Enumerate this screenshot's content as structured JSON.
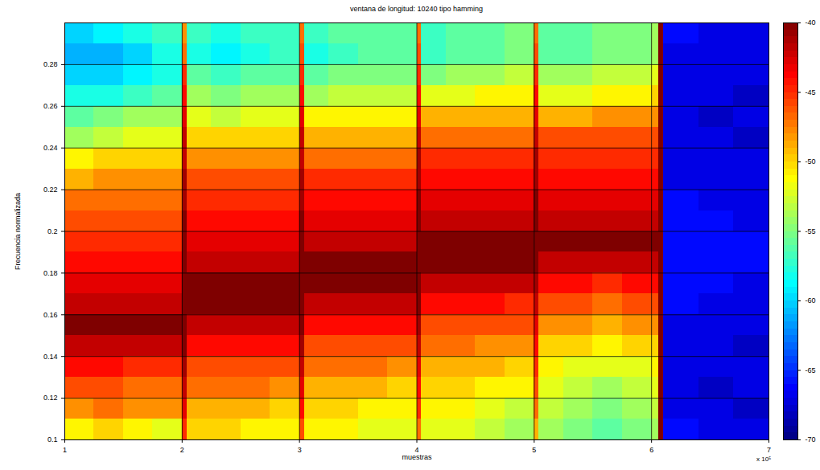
{
  "chart_data": {
    "type": "heatmap",
    "title": "ventana de longitud: 10240 tipo hamming",
    "x_label": "muestras",
    "y_label": "Frecuencia normalizada",
    "x_multiplier_label": "x 10⁵",
    "xlim": [
      1,
      7
    ],
    "xticks": [
      1,
      2,
      3,
      4,
      5,
      6,
      7
    ],
    "ylim": [
      0.1,
      0.3
    ],
    "yticks": [
      0.1,
      0.12,
      0.14,
      0.16,
      0.18,
      0.2,
      0.22,
      0.24,
      0.26,
      0.28
    ],
    "grid": true,
    "cells": {
      "x_edges": [
        1,
        1.25,
        1.5,
        1.75,
        2,
        2.04,
        2.25,
        2.5,
        2.75,
        3,
        3.04,
        3.25,
        3.5,
        3.75,
        4,
        4.04,
        4.25,
        4.5,
        4.75,
        5,
        5.04,
        5.25,
        5.5,
        5.75,
        6,
        6.06,
        6.1,
        6.4,
        6.7,
        7
      ],
      "y_edges": [
        0.1,
        0.11,
        0.12,
        0.13,
        0.14,
        0.15,
        0.16,
        0.17,
        0.18,
        0.19,
        0.2,
        0.21,
        0.22,
        0.23,
        0.24,
        0.25,
        0.26,
        0.27,
        0.28,
        0.29,
        0.3
      ],
      "values": [
        [
          -51,
          -48,
          -46,
          -44,
          -42,
          -38,
          -42,
          -43,
          -44,
          -45,
          -46,
          -47,
          -49,
          -51,
          -54,
          -56,
          -58,
          -60,
          -61,
          -60
        ],
        [
          -50,
          -47,
          -46,
          -44,
          -42,
          -38,
          -42,
          -43,
          -44,
          -45,
          -46,
          -47,
          -48,
          -50,
          -53,
          -55,
          -58,
          -60,
          -61,
          -59
        ],
        [
          -51,
          -48,
          -47,
          -45,
          -42,
          -38,
          -42,
          -43,
          -44,
          -45,
          -46,
          -47,
          -48,
          -50,
          -52,
          -54,
          -57,
          -59,
          -60,
          -58
        ],
        [
          -52,
          -48,
          -47,
          -45,
          -42,
          -38,
          -42,
          -43,
          -44,
          -45,
          -46,
          -47,
          -48,
          -50,
          -52,
          -54,
          -56,
          -58,
          -58,
          -57
        ],
        [
          -45,
          -43,
          -42,
          -41,
          -40,
          -39,
          -39,
          -39,
          -40,
          -40,
          -40,
          -41,
          -41,
          -42,
          -42,
          -43,
          -44,
          -45,
          -47,
          -48
        ],
        [
          -50,
          -49,
          -47,
          -46,
          -44,
          -42,
          -38,
          -38,
          -42,
          -43,
          -44,
          -45,
          -46,
          -48,
          -50,
          -52,
          -54,
          -56,
          -58,
          -57
        ],
        [
          -50,
          -49,
          -47,
          -46,
          -44,
          -42,
          -38,
          -38,
          -42,
          -43,
          -44,
          -45,
          -46,
          -48,
          -50,
          -53,
          -55,
          -57,
          -59,
          -58
        ],
        [
          -51,
          -49,
          -47,
          -46,
          -44,
          -42,
          -38,
          -38,
          -42,
          -43,
          -44,
          -45,
          -46,
          -48,
          -50,
          -52,
          -54,
          -56,
          -58,
          -57
        ],
        [
          -51,
          -50,
          -48,
          -46,
          -44,
          -42,
          -38,
          -38,
          -42,
          -43,
          -44,
          -45,
          -46,
          -48,
          -50,
          -52,
          -54,
          -56,
          -57,
          -57
        ],
        [
          -46,
          -44,
          -43,
          -42,
          -41,
          -40,
          -39,
          -39,
          -39,
          -40,
          -40,
          -41,
          -41,
          -42,
          -42,
          -43,
          -44,
          -45,
          -46,
          -47
        ],
        [
          -51,
          -50,
          -49,
          -47,
          -46,
          -44,
          -42,
          -38,
          -38,
          -42,
          -43,
          -44,
          -45,
          -47,
          -49,
          -51,
          -54,
          -56,
          -58,
          -57
        ],
        [
          -51,
          -50,
          -49,
          -47,
          -46,
          -44,
          -42,
          -38,
          -38,
          -42,
          -43,
          -44,
          -45,
          -47,
          -49,
          -51,
          -53,
          -55,
          -57,
          -56
        ],
        [
          -52,
          -51,
          -49,
          -47,
          -46,
          -44,
          -42,
          -38,
          -38,
          -42,
          -43,
          -44,
          -45,
          -47,
          -49,
          -51,
          -53,
          -55,
          -56,
          -56
        ],
        [
          -52,
          -51,
          -50,
          -48,
          -46,
          -44,
          -42,
          -38,
          -38,
          -42,
          -43,
          -44,
          -45,
          -47,
          -49,
          -51,
          -53,
          -55,
          -56,
          -56
        ],
        [
          -47,
          -45,
          -44,
          -43,
          -42,
          -41,
          -40,
          -39,
          -38,
          -39,
          -40,
          -40,
          -41,
          -41,
          -42,
          -43,
          -44,
          -45,
          -46,
          -47
        ],
        [
          -52,
          -51,
          -50,
          -49,
          -47,
          -46,
          -44,
          -42,
          -38,
          -40,
          -42,
          -43,
          -44,
          -45,
          -47,
          -49,
          -52,
          -55,
          -57,
          -57
        ],
        [
          -52,
          -51,
          -50,
          -49,
          -47,
          -46,
          -44,
          -42,
          -38,
          -40,
          -42,
          -43,
          -44,
          -45,
          -47,
          -49,
          -52,
          -54,
          -56,
          -56
        ],
        [
          -53,
          -52,
          -51,
          -49,
          -48,
          -46,
          -44,
          -42,
          -38,
          -40,
          -42,
          -43,
          -44,
          -45,
          -47,
          -49,
          -51,
          -54,
          -56,
          -56
        ],
        [
          -54,
          -53,
          -51,
          -50,
          -48,
          -46,
          -45,
          -42,
          -38,
          -40,
          -42,
          -43,
          -44,
          -45,
          -47,
          -49,
          -51,
          -53,
          -55,
          -55
        ],
        [
          -49,
          -47,
          -46,
          -45,
          -44,
          -43,
          -42,
          -41,
          -40,
          -38,
          -40,
          -40,
          -41,
          -41,
          -42,
          -43,
          -44,
          -45,
          -46,
          -47
        ],
        [
          -54,
          -53,
          -52,
          -51,
          -50,
          -48,
          -46,
          -44,
          -42,
          -38,
          -42,
          -43,
          -44,
          -45,
          -46,
          -49,
          -52,
          -54,
          -56,
          -56
        ],
        [
          -55,
          -54,
          -53,
          -52,
          -50,
          -48,
          -46,
          -44,
          -42,
          -38,
          -42,
          -43,
          -44,
          -45,
          -46,
          -49,
          -52,
          -54,
          -56,
          -56
        ],
        [
          -56,
          -55,
          -54,
          -52,
          -51,
          -49,
          -47,
          -45,
          -42,
          -38,
          -42,
          -43,
          -44,
          -45,
          -46,
          -48,
          -51,
          -53,
          -55,
          -55
        ],
        [
          -55,
          -54,
          -53,
          -52,
          -50,
          -48,
          -46,
          -44,
          -42,
          -38,
          -42,
          -43,
          -44,
          -45,
          -46,
          -48,
          -51,
          -53,
          -55,
          -55
        ],
        [
          -54,
          -53,
          -52,
          -51,
          -50,
          -48,
          -46,
          -44,
          -42,
          -40,
          -42,
          -43,
          -44,
          -45,
          -46,
          -48,
          -50,
          -52,
          -54,
          -54
        ],
        [
          -38,
          -38,
          -38,
          -38,
          -38,
          -38,
          -38,
          -38,
          -38,
          -38,
          -38,
          -38,
          -38,
          -38,
          -38,
          -38,
          -38,
          -38,
          -38,
          -38
        ],
        [
          -66,
          -67,
          -67,
          -67,
          -67,
          -67,
          -66,
          -66,
          -66,
          -66,
          -66,
          -66,
          -67,
          -67,
          -67,
          -67,
          -67,
          -67,
          -67,
          -66
        ],
        [
          -67,
          -67,
          -68,
          -67,
          -67,
          -67,
          -67,
          -66,
          -66,
          -66,
          -66,
          -67,
          -67,
          -67,
          -67,
          -68,
          -67,
          -67,
          -67,
          -67
        ],
        [
          -67,
          -68,
          -67,
          -67,
          -68,
          -67,
          -67,
          -67,
          -66,
          -66,
          -67,
          -67,
          -67,
          -67,
          -68,
          -67,
          -68,
          -67,
          -67,
          -67
        ]
      ]
    },
    "colorbar": {
      "range": [
        -70,
        -40
      ],
      "ticks": [
        -70,
        -65,
        -60,
        -55,
        -50,
        -45,
        -40
      ]
    }
  }
}
